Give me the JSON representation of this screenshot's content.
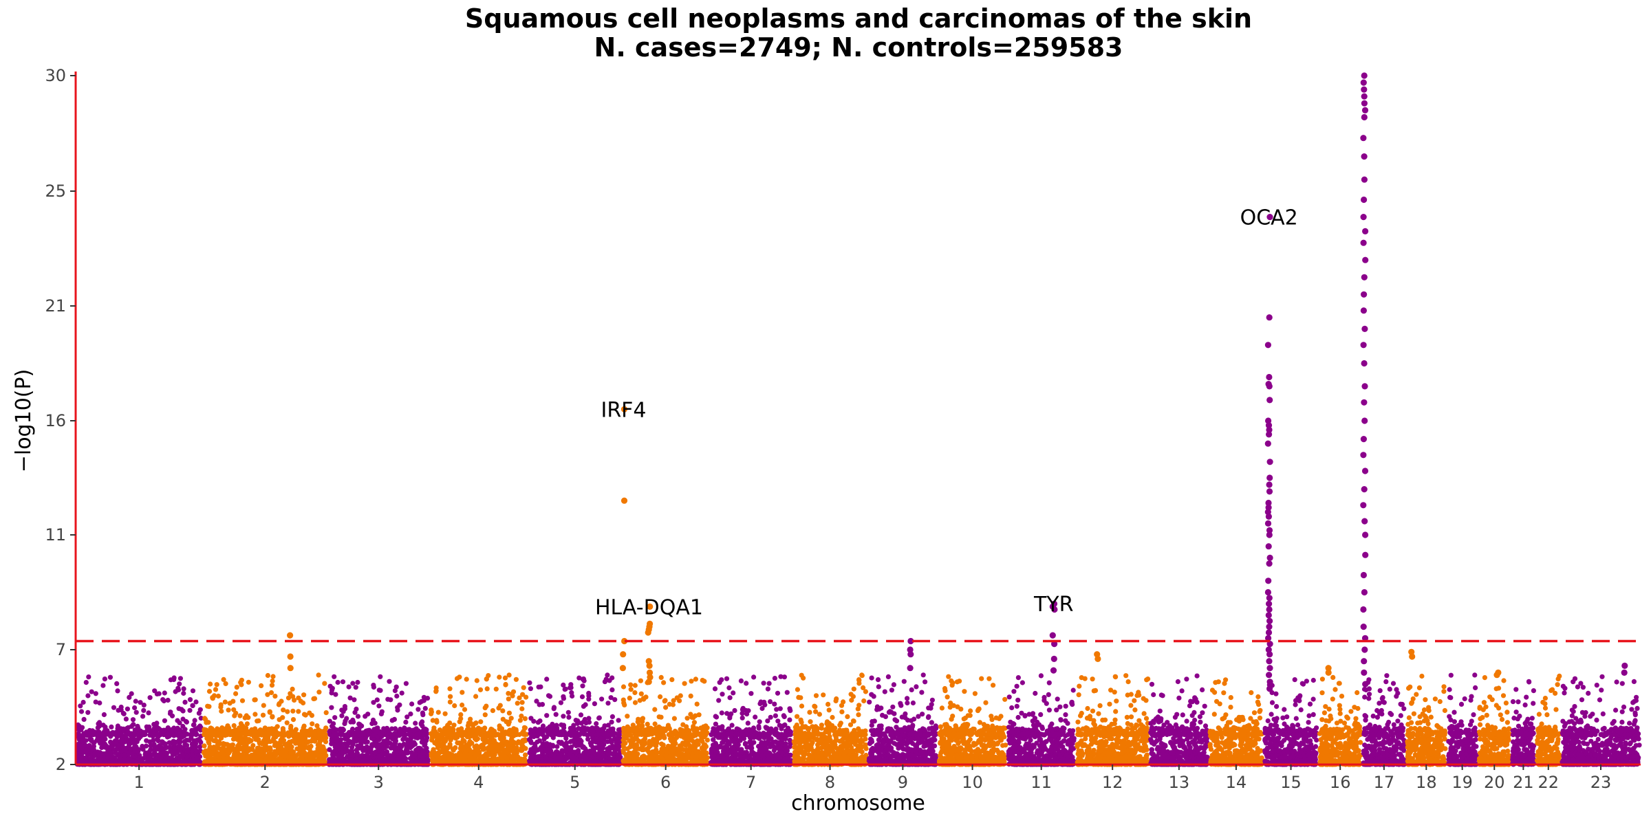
{
  "chart_data": {
    "type": "scatter",
    "subtype": "manhattan",
    "title": "Squamous cell neoplasms and carcinomas of the skin",
    "subtitle": "N. cases=2749; N. controls=259583",
    "xlabel": "chromosome",
    "ylabel": "−log10(P)",
    "y_scale": "custom-compressed",
    "ylim": [
      2,
      30
    ],
    "y_ticks": [
      2,
      7,
      11,
      16,
      21,
      25,
      30
    ],
    "grid": false,
    "colors": {
      "odd_chromosome": "#8b008b",
      "even_chromosome": "#f07800",
      "threshold_line": "#e8141c",
      "axis": "#e8141c"
    },
    "significance_threshold": 7.3,
    "chromosomes": [
      {
        "label": "1",
        "span": [
          0.0,
          0.081
        ]
      },
      {
        "label": "2",
        "span": [
          0.081,
          0.161
        ]
      },
      {
        "label": "3",
        "span": [
          0.161,
          0.226
        ]
      },
      {
        "label": "4",
        "span": [
          0.226,
          0.289
        ]
      },
      {
        "label": "5",
        "span": [
          0.289,
          0.349
        ]
      },
      {
        "label": "6",
        "span": [
          0.349,
          0.405
        ]
      },
      {
        "label": "7",
        "span": [
          0.405,
          0.458
        ]
      },
      {
        "label": "8",
        "span": [
          0.458,
          0.506
        ]
      },
      {
        "label": "9",
        "span": [
          0.506,
          0.551
        ]
      },
      {
        "label": "10",
        "span": [
          0.551,
          0.595
        ]
      },
      {
        "label": "11",
        "span": [
          0.595,
          0.639
        ]
      },
      {
        "label": "12",
        "span": [
          0.639,
          0.686
        ]
      },
      {
        "label": "13",
        "span": [
          0.686,
          0.724
        ]
      },
      {
        "label": "14",
        "span": [
          0.724,
          0.759
        ]
      },
      {
        "label": "15",
        "span": [
          0.759,
          0.794
        ]
      },
      {
        "label": "16",
        "span": [
          0.794,
          0.822
        ]
      },
      {
        "label": "17",
        "span": [
          0.822,
          0.85
        ]
      },
      {
        "label": "18",
        "span": [
          0.85,
          0.876
        ]
      },
      {
        "label": "19",
        "span": [
          0.876,
          0.896
        ]
      },
      {
        "label": "20",
        "span": [
          0.896,
          0.917
        ]
      },
      {
        "label": "21",
        "span": [
          0.917,
          0.933
        ]
      },
      {
        "label": "22",
        "span": [
          0.933,
          0.949
        ]
      },
      {
        "label": "23",
        "span": [
          0.949,
          1.0
        ]
      }
    ],
    "annotations": [
      {
        "text": "IRF4",
        "chromosome": "6",
        "position": 0.02,
        "value": 16.5
      },
      {
        "text": "HLA-DQA1",
        "chromosome": "6",
        "position": 0.31,
        "value": 8.5
      },
      {
        "text": "TYR",
        "chromosome": "11",
        "position": 0.68,
        "value": 8.6
      },
      {
        "text": "OCA2",
        "chromosome": "15",
        "position": 0.1,
        "value": 24.1
      }
    ],
    "peaks": [
      {
        "chromosome": "6",
        "position": 0.02,
        "values": [
          16.5,
          12.5,
          7.3,
          6.8,
          6.2
        ]
      },
      {
        "chromosome": "6",
        "position": 0.31,
        "values": [
          8.5,
          7.9,
          7.8,
          7.7,
          7.6,
          6.5,
          6.3,
          6.0,
          5.8,
          5.6
        ]
      },
      {
        "chromosome": "2",
        "position": 0.7,
        "values": [
          7.5,
          6.7,
          6.2
        ]
      },
      {
        "chromosome": "9",
        "position": 0.6,
        "values": [
          7.3,
          7.0,
          6.8,
          6.2
        ]
      },
      {
        "chromosome": "11",
        "position": 0.68,
        "values": [
          8.6,
          8.5,
          8.4,
          7.5,
          7.2,
          6.6,
          6.1
        ]
      },
      {
        "chromosome": "12",
        "position": 0.3,
        "values": [
          6.8,
          6.6
        ]
      },
      {
        "chromosome": "15",
        "position": 0.1,
        "values": [
          24.1,
          20.5,
          19.3,
          17.9,
          17.6,
          17.5,
          16.9,
          16.0,
          15.8,
          15.6,
          15.4,
          15.0,
          14.2,
          13.5,
          13.2,
          12.9,
          12.4,
          12.2,
          12.0,
          11.8,
          11.5,
          11.2,
          11.0,
          10.6,
          10.2,
          10.0,
          9.4,
          9.0,
          8.8,
          8.6,
          8.4,
          8.2,
          8.0,
          7.8,
          7.6,
          7.4,
          7.2,
          7.0,
          6.8,
          6.5,
          6.2,
          5.9,
          5.6,
          5.3
        ]
      },
      {
        "chromosome": "17",
        "position": 0.05,
        "values": [
          30.0,
          29.7,
          29.4,
          29.1,
          28.8,
          28.5,
          28.2,
          27.3,
          26.5,
          25.5,
          24.7,
          24.1,
          23.6,
          23.2,
          22.6,
          22.0,
          21.4,
          20.8,
          20.0,
          19.3,
          18.5,
          17.5,
          16.8,
          16.0,
          15.2,
          14.5,
          13.8,
          13.0,
          12.3,
          11.6,
          11.0,
          10.3,
          9.6,
          9.0,
          8.4,
          7.8,
          7.4,
          7.0,
          6.5,
          6.0,
          5.5
        ]
      },
      {
        "chromosome": "16",
        "position": 0.25,
        "values": [
          6.2,
          6.0
        ]
      },
      {
        "chromosome": "18",
        "position": 0.15,
        "values": [
          6.9,
          6.7
        ]
      },
      {
        "chromosome": "20",
        "position": 0.6,
        "values": [
          6.0,
          5.9
        ]
      },
      {
        "chromosome": "23",
        "position": 0.8,
        "values": [
          6.3,
          6.0
        ]
      }
    ]
  }
}
